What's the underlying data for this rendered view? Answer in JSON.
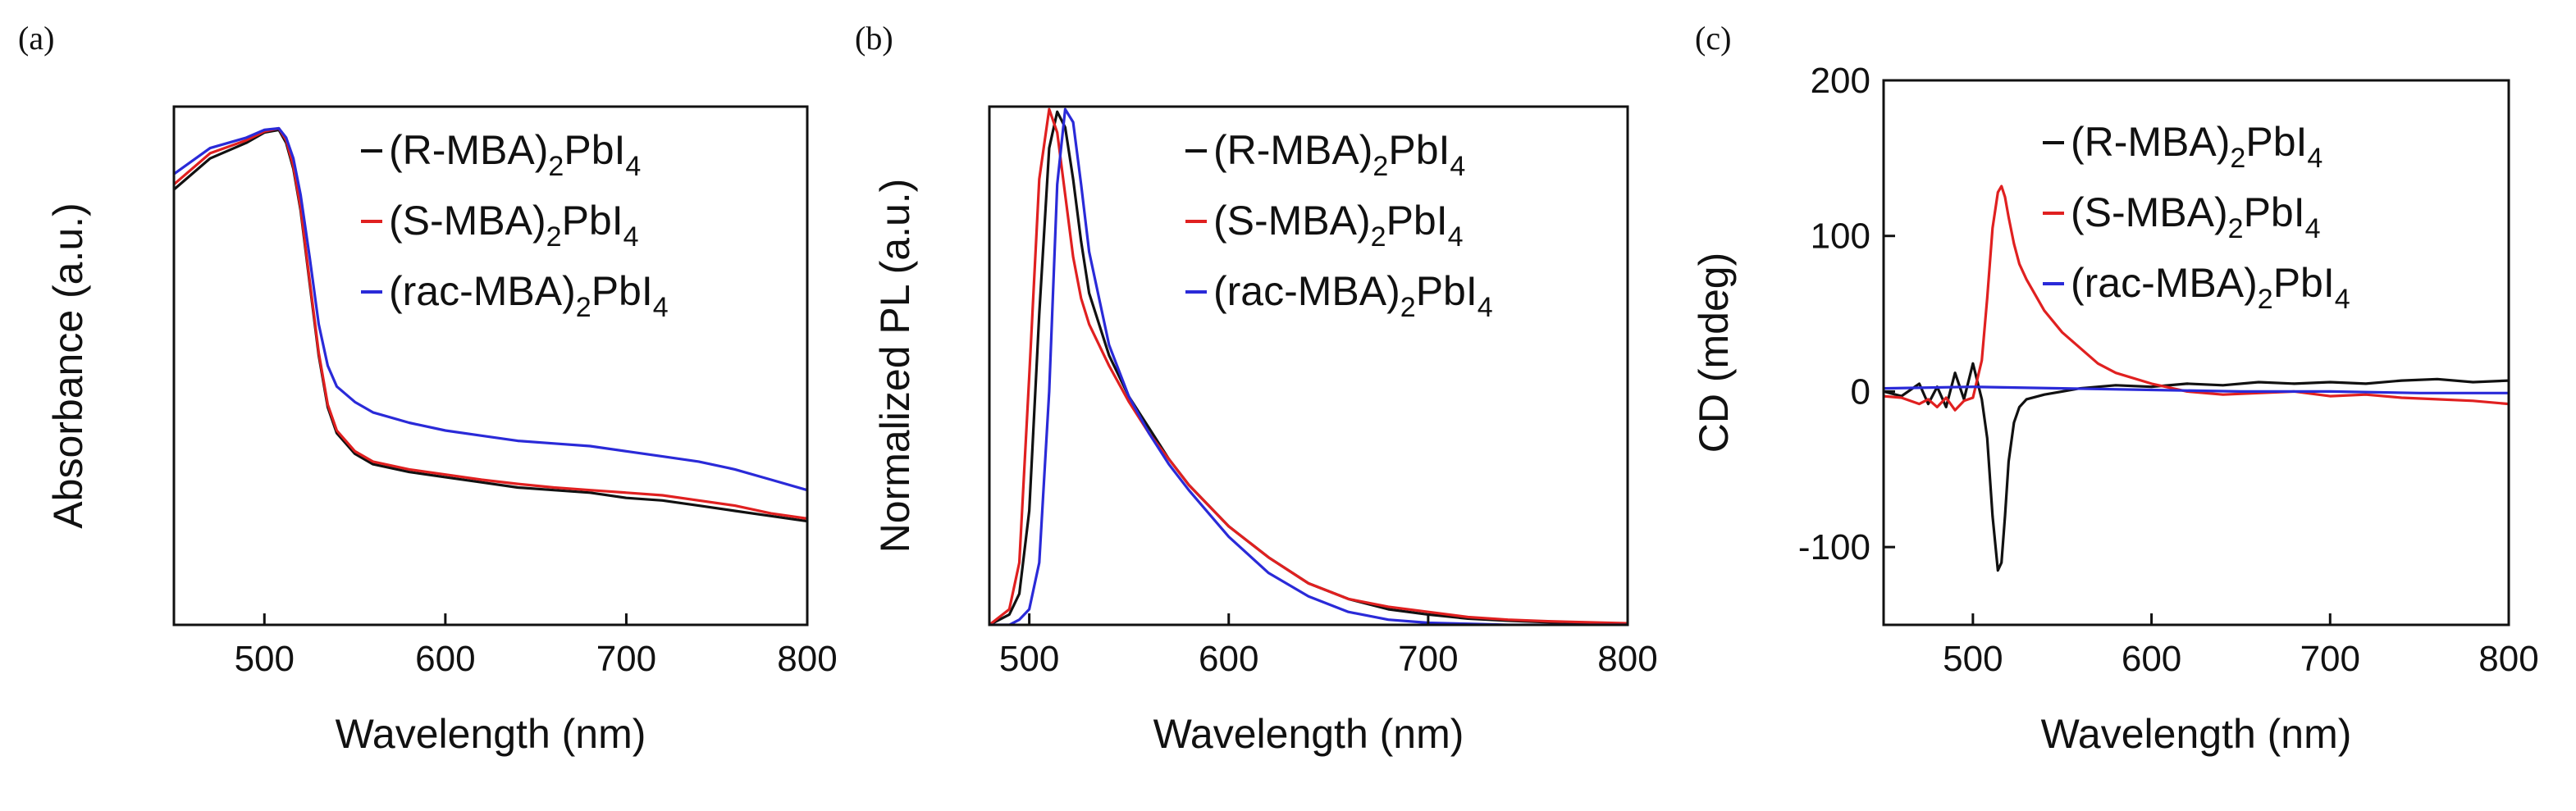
{
  "figure": {
    "panel_labels": [
      "(a)",
      "(b)",
      "(c)"
    ]
  },
  "colors": {
    "R-MBA": "#111111",
    "S-MBA": "#e02020",
    "rac-MBA": "#2a2ad8",
    "axis": "#111111"
  },
  "legend_entries": [
    {
      "key": "R-MBA",
      "pre": "(R-MBA)",
      "sub1": "2",
      "mid": "PbI",
      "sub2": "4"
    },
    {
      "key": "S-MBA",
      "pre": "(S-MBA)",
      "sub1": "2",
      "mid": "PbI",
      "sub2": "4"
    },
    {
      "key": "rac-MBA",
      "pre": "(rac-MBA)",
      "sub1": "2",
      "mid": "PbI",
      "sub2": "4"
    }
  ],
  "chart_data": [
    {
      "panel": "(a)",
      "type": "line",
      "title": "",
      "xlabel": "Wavelength (nm)",
      "ylabel": "Absorbance (a.u.)",
      "xlim": [
        450,
        800
      ],
      "ylim": [
        0,
        1
      ],
      "xticks": [
        500,
        600,
        700,
        800
      ],
      "yticks": [],
      "yticklabels_shown": false,
      "legend_position": "top-right",
      "series": [
        {
          "name": "(R-MBA)2PbI4",
          "key": "R-MBA",
          "x": [
            450,
            470,
            490,
            500,
            508,
            512,
            516,
            520,
            525,
            530,
            535,
            540,
            550,
            560,
            580,
            600,
            620,
            640,
            660,
            680,
            700,
            720,
            740,
            760,
            780,
            800
          ],
          "y": [
            0.84,
            0.9,
            0.93,
            0.95,
            0.955,
            0.93,
            0.88,
            0.8,
            0.66,
            0.52,
            0.42,
            0.37,
            0.33,
            0.31,
            0.295,
            0.285,
            0.275,
            0.265,
            0.26,
            0.255,
            0.245,
            0.24,
            0.23,
            0.22,
            0.21,
            0.2
          ]
        },
        {
          "name": "(S-MBA)2PbI4",
          "key": "S-MBA",
          "x": [
            450,
            470,
            490,
            500,
            508,
            512,
            516,
            520,
            525,
            530,
            535,
            540,
            550,
            560,
            580,
            600,
            620,
            640,
            660,
            680,
            700,
            720,
            740,
            760,
            780,
            800
          ],
          "y": [
            0.85,
            0.91,
            0.935,
            0.952,
            0.958,
            0.935,
            0.885,
            0.805,
            0.665,
            0.525,
            0.425,
            0.375,
            0.335,
            0.315,
            0.3,
            0.29,
            0.28,
            0.272,
            0.265,
            0.26,
            0.255,
            0.25,
            0.24,
            0.23,
            0.215,
            0.205
          ]
        },
        {
          "name": "(rac-MBA)2PbI4",
          "key": "rac-MBA",
          "x": [
            450,
            470,
            490,
            500,
            508,
            512,
            516,
            520,
            525,
            530,
            535,
            540,
            550,
            560,
            580,
            600,
            620,
            640,
            660,
            680,
            700,
            720,
            740,
            760,
            780,
            800
          ],
          "y": [
            0.87,
            0.92,
            0.94,
            0.955,
            0.958,
            0.94,
            0.9,
            0.83,
            0.71,
            0.58,
            0.5,
            0.46,
            0.43,
            0.41,
            0.39,
            0.375,
            0.365,
            0.355,
            0.35,
            0.345,
            0.335,
            0.325,
            0.315,
            0.3,
            0.28,
            0.26
          ]
        }
      ]
    },
    {
      "panel": "(b)",
      "type": "line",
      "title": "",
      "xlabel": "Wavelength (nm)",
      "ylabel": "Normalized PL (a.u.)",
      "xlim": [
        480,
        800
      ],
      "ylim": [
        0,
        1
      ],
      "xticks": [
        500,
        600,
        700,
        800
      ],
      "yticks": [],
      "yticklabels_shown": false,
      "legend_position": "top-right",
      "series": [
        {
          "name": "(R-MBA)2PbI4",
          "key": "R-MBA",
          "x": [
            480,
            490,
            495,
            500,
            505,
            510,
            514,
            518,
            522,
            526,
            530,
            540,
            550,
            560,
            570,
            580,
            600,
            620,
            640,
            660,
            680,
            700,
            720,
            740,
            760,
            800
          ],
          "y": [
            0.0,
            0.02,
            0.06,
            0.22,
            0.6,
            0.92,
            0.99,
            0.96,
            0.86,
            0.74,
            0.64,
            0.52,
            0.44,
            0.38,
            0.32,
            0.27,
            0.19,
            0.13,
            0.08,
            0.05,
            0.03,
            0.02,
            0.012,
            0.008,
            0.005,
            0.0
          ]
        },
        {
          "name": "(S-MBA)2PbI4",
          "key": "S-MBA",
          "x": [
            480,
            490,
            495,
            500,
            505,
            510,
            514,
            518,
            522,
            526,
            530,
            540,
            550,
            560,
            570,
            580,
            600,
            620,
            640,
            660,
            680,
            700,
            720,
            740,
            760,
            800
          ],
          "y": [
            0.0,
            0.03,
            0.12,
            0.48,
            0.86,
            0.995,
            0.95,
            0.83,
            0.71,
            0.63,
            0.58,
            0.5,
            0.43,
            0.37,
            0.32,
            0.27,
            0.19,
            0.13,
            0.08,
            0.05,
            0.035,
            0.025,
            0.015,
            0.01,
            0.007,
            0.003
          ]
        },
        {
          "name": "(rac-MBA)2PbI4",
          "key": "rac-MBA",
          "x": [
            480,
            490,
            495,
            500,
            505,
            510,
            514,
            518,
            522,
            526,
            530,
            540,
            550,
            560,
            570,
            580,
            600,
            620,
            640,
            660,
            680,
            700,
            720,
            740,
            760,
            800
          ],
          "y": [
            0.0,
            0.0,
            0.01,
            0.03,
            0.12,
            0.45,
            0.85,
            0.995,
            0.97,
            0.85,
            0.72,
            0.54,
            0.44,
            0.37,
            0.31,
            0.26,
            0.17,
            0.1,
            0.055,
            0.025,
            0.01,
            0.004,
            0.002,
            0.0,
            0.0,
            0.0
          ]
        }
      ]
    },
    {
      "panel": "(c)",
      "type": "line",
      "title": "",
      "xlabel": "Wavelength (nm)",
      "ylabel": "CD (mdeg)",
      "xlim": [
        450,
        800
      ],
      "ylim": [
        -150,
        200
      ],
      "xticks": [
        500,
        600,
        700,
        800
      ],
      "yticks": [
        -100,
        0,
        100,
        200
      ],
      "yticklabels_shown": true,
      "legend_position": "top-right",
      "series": [
        {
          "name": "(R-MBA)2PbI4",
          "key": "R-MBA",
          "x": [
            450,
            460,
            470,
            475,
            480,
            485,
            490,
            495,
            500,
            505,
            508,
            511,
            514,
            516,
            518,
            520,
            523,
            526,
            530,
            540,
            550,
            560,
            570,
            580,
            600,
            620,
            640,
            660,
            680,
            700,
            720,
            740,
            760,
            780,
            800
          ],
          "y": [
            0,
            -3,
            5,
            -8,
            3,
            -10,
            12,
            -5,
            18,
            -5,
            -30,
            -80,
            -115,
            -110,
            -80,
            -45,
            -20,
            -10,
            -5,
            -2,
            0,
            2,
            3,
            4,
            3,
            5,
            4,
            6,
            5,
            6,
            5,
            7,
            8,
            6,
            7
          ]
        },
        {
          "name": "(S-MBA)2PbI4",
          "key": "S-MBA",
          "x": [
            450,
            460,
            470,
            475,
            480,
            485,
            490,
            495,
            500,
            505,
            508,
            511,
            514,
            516,
            518,
            520,
            523,
            526,
            530,
            540,
            550,
            560,
            570,
            580,
            600,
            620,
            640,
            660,
            680,
            700,
            720,
            740,
            760,
            780,
            800
          ],
          "y": [
            -3,
            -4,
            -8,
            -5,
            -10,
            -4,
            -12,
            -6,
            -4,
            20,
            60,
            105,
            128,
            132,
            125,
            112,
            95,
            82,
            72,
            52,
            38,
            28,
            18,
            12,
            5,
            0,
            -2,
            -1,
            0,
            -3,
            -2,
            -4,
            -5,
            -6,
            -8
          ]
        },
        {
          "name": "(rac-MBA)2PbI4",
          "key": "rac-MBA",
          "x": [
            450,
            500,
            550,
            600,
            650,
            700,
            750,
            800
          ],
          "y": [
            2,
            3,
            2,
            1,
            0,
            0,
            -1,
            -1
          ]
        }
      ]
    }
  ]
}
